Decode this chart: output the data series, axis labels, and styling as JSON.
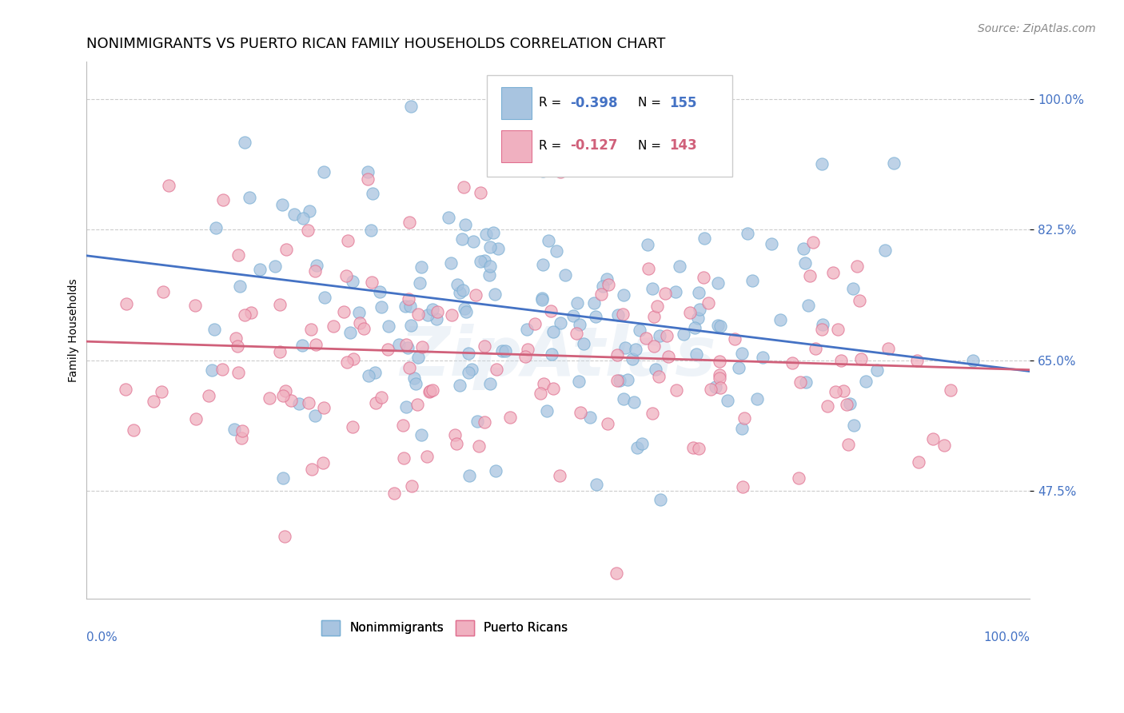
{
  "title": "NONIMMIGRANTS VS PUERTO RICAN FAMILY HOUSEHOLDS CORRELATION CHART",
  "source_text": "Source: ZipAtlas.com",
  "ylabel": "Family Households",
  "ytick_values": [
    0.475,
    0.65,
    0.825,
    1.0
  ],
  "watermark": "ZipAtlas",
  "blue_color": "#a8c4e0",
  "blue_edge_color": "#7aafd4",
  "pink_color": "#f0b0c0",
  "pink_edge_color": "#e07090",
  "blue_line_color": "#4472c4",
  "pink_line_color": "#d0607a",
  "n_blue": 155,
  "n_pink": 143,
  "blue_intercept": 0.79,
  "blue_slope": -0.155,
  "pink_intercept": 0.675,
  "pink_slope": -0.038,
  "xmin": 0.0,
  "xmax": 1.0,
  "ymin": 0.33,
  "ymax": 1.05,
  "title_fontsize": 13,
  "axis_label_fontsize": 10,
  "tick_fontsize": 11,
  "marker_size": 120,
  "seed": 42
}
